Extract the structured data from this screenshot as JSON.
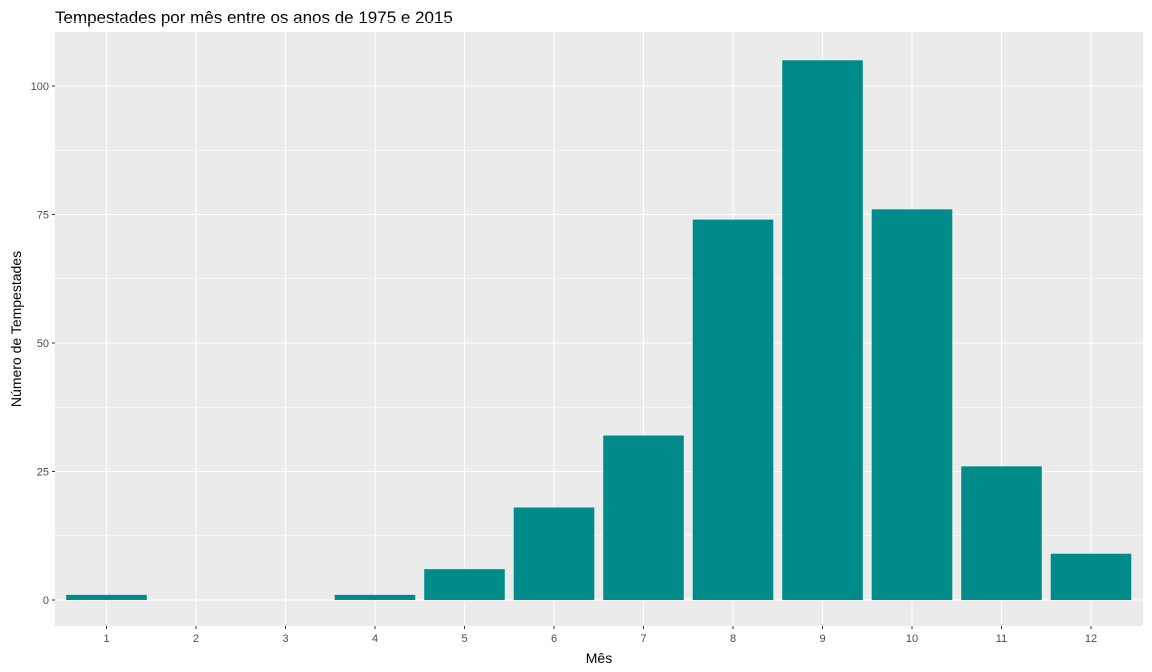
{
  "chart_data": {
    "type": "bar",
    "title": "Tempestades por mês entre os anos de 1975 e 2015",
    "xlabel": "Mês",
    "ylabel": "Número de Tempestades",
    "categories": [
      "1",
      "2",
      "3",
      "4",
      "5",
      "6",
      "7",
      "8",
      "9",
      "10",
      "11",
      "12"
    ],
    "values": [
      1,
      0,
      0,
      1,
      6,
      18,
      32,
      74,
      105,
      76,
      26,
      9
    ],
    "ylim": [
      0,
      110
    ],
    "yticks": [
      0,
      25,
      50,
      75,
      100
    ],
    "grid": true,
    "legend": "none",
    "colors": {
      "bar": "#008B8B",
      "panel": "#EBEBEB",
      "grid": "#FFFFFF"
    }
  }
}
